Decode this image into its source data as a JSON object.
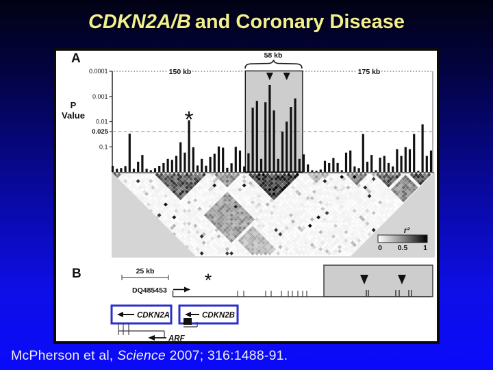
{
  "slide": {
    "title_gene": "CDKN2A/B",
    "title_rest": "and Coronary Disease",
    "title_color": "#f2f08c",
    "background_top": "#020214",
    "background_bottom": "#0a0afb"
  },
  "citation": {
    "prefix": "McPherson et al, ",
    "journal": "Science",
    "suffix": " 2007; 316:1488-91."
  },
  "panel_a": {
    "label": "A",
    "axis_title_1": "P",
    "axis_title_2": "Value",
    "yticks": [
      {
        "label": "0.0001",
        "p": 0.0001
      },
      {
        "label": "0.001",
        "p": 0.001
      },
      {
        "label": "0.01",
        "p": 0.01
      },
      {
        "label": "0.1",
        "p": 0.1
      }
    ],
    "threshold_label": "0.025",
    "threshold_p": 0.025,
    "region_left_label": "150 kb",
    "region_box_label": "58 kb",
    "region_right_label": "175 kb",
    "asterisk": "*"
  },
  "chart_data": [
    {
      "type": "bar",
      "title": "SNP association P values across the CDKN2A/B locus (Panel A)",
      "ylabel": "P Value",
      "yscale": "log",
      "ylim": [
        0.0001,
        1
      ],
      "threshold": 0.025,
      "values": [
        0.57,
        0.75,
        0.7,
        0.58,
        0.03,
        0.75,
        0.39,
        0.21,
        0.75,
        0.85,
        0.7,
        0.57,
        0.44,
        0.3,
        0.33,
        0.23,
        0.066,
        0.17,
        0.0088,
        0.105,
        0.55,
        0.3,
        0.56,
        0.25,
        0.19,
        0.097,
        0.108,
        0.68,
        0.45,
        0.1,
        0.14,
        0.6,
        0.18,
        0.0028,
        0.0015,
        0.3,
        0.0017,
        0.00035,
        0.0036,
        0.3,
        0.025,
        0.01,
        0.0026,
        0.0012,
        0.3,
        0.2,
        0.5,
        0.85,
        0.9,
        0.8,
        0.36,
        0.44,
        0.28,
        0.44,
        0.85,
        0.17,
        0.14,
        0.6,
        0.7,
        0.031,
        0.39,
        0.21,
        0.85,
        0.27,
        0.23,
        0.44,
        0.6,
        0.125,
        0.23,
        0.103,
        0.125,
        0.031,
        0.9,
        0.0128,
        0.23,
        0.14
      ],
      "highlight": {
        "label": "58 kb",
        "bar_start": 32,
        "bar_end": 44
      },
      "asterisk_bar_index": 18,
      "arrow_bar_indices": [
        37,
        41
      ]
    },
    {
      "type": "heatmap",
      "title": "Pairwise linkage disequilibrium (r²)",
      "n_snps": 76,
      "max_rows": 38,
      "noise_seed": 11,
      "clusters": [
        [
          0,
          2,
          0.85
        ],
        [
          10,
          22,
          0.8
        ],
        [
          24,
          30,
          0.55
        ],
        [
          32,
          44,
          0.95
        ],
        [
          46,
          50,
          0.4
        ],
        [
          55,
          60,
          0.6
        ],
        [
          62,
          68,
          0.75
        ],
        [
          70,
          75,
          0.85
        ]
      ],
      "bands": [
        [
          12,
          22,
          32,
          44,
          0.42
        ],
        [
          14,
          20,
          46,
          56,
          0.3
        ],
        [
          62,
          68,
          70,
          75,
          0.5
        ]
      ],
      "legend": {
        "title": "r²",
        "t0": "0",
        "t05": "0.5",
        "t1": "1"
      }
    }
  ],
  "panel_b": {
    "label": "B",
    "scale_label": "25 kb",
    "accession": "DQ485453",
    "asterisk": "*",
    "gene_line_ticks_x": [
      347,
      356,
      388,
      396,
      411,
      421,
      427,
      435,
      442,
      448
    ],
    "box_ticks_x": [
      535,
      538,
      578,
      583,
      597,
      601
    ],
    "box_arrowheads_x": [
      532,
      587
    ],
    "cdkn2a_exon_ticks_x": [
      173,
      180,
      188
    ],
    "genes": {
      "cdkn2a": "CDKN2A",
      "cdkn2b": "CDKN2B",
      "arf": "ARF"
    }
  }
}
